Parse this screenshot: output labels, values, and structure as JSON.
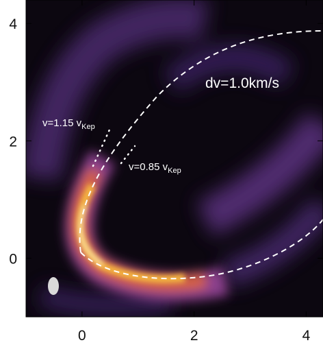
{
  "chart_data": {
    "type": "image",
    "xlim": [
      -1,
      4.3
    ],
    "ylim": [
      -1,
      4.4
    ],
    "xticks": [
      0,
      2,
      4
    ],
    "yticks": [
      0,
      2,
      4
    ],
    "annotations": [
      {
        "text": "dv=1.0km/s"
      },
      {
        "text": "v=1.15 v",
        "subscript": "Kep"
      },
      {
        "text": "v=0.85 v",
        "subscript": "Kep"
      }
    ]
  }
}
